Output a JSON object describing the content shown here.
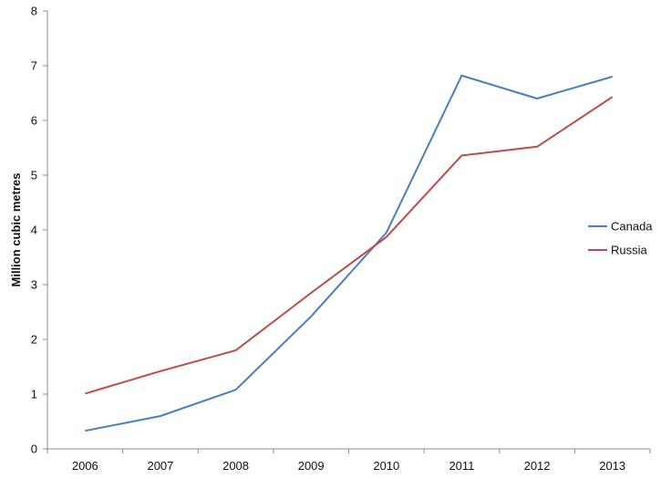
{
  "chart_data": {
    "type": "line",
    "title": "",
    "xlabel": "",
    "ylabel": "Million cubic metres",
    "x": [
      "2006",
      "2007",
      "2008",
      "2009",
      "2010",
      "2011",
      "2012",
      "2013"
    ],
    "ylim": [
      0,
      8
    ],
    "yticks": [
      "0",
      "1",
      "2",
      "3",
      "4",
      "5",
      "6",
      "7",
      "8"
    ],
    "grid": false,
    "legend_position": "right",
    "series": [
      {
        "name": "Canada",
        "color": "#4a7ebb",
        "values": [
          0.33,
          0.6,
          1.08,
          2.42,
          3.95,
          6.82,
          6.4,
          6.8
        ]
      },
      {
        "name": "Russia",
        "color": "#be4b48",
        "values": [
          1.01,
          1.42,
          1.8,
          2.85,
          3.87,
          5.36,
          5.52,
          6.43
        ]
      }
    ]
  }
}
